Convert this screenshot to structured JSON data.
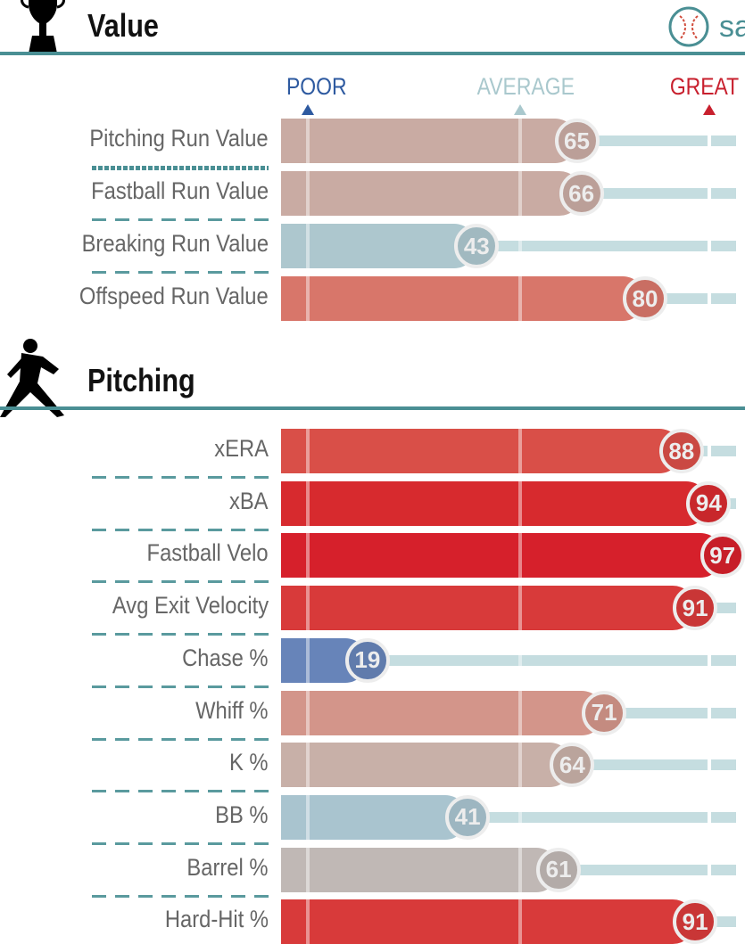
{
  "logo_text": "sa",
  "scale": {
    "poor": "POOR",
    "average": "AVERAGE",
    "great": "GREAT",
    "poor_color": "#2e5aa0",
    "average_color": "#a9c8cd",
    "great_color": "#c8202e"
  },
  "chart_data": [
    {
      "type": "bar",
      "title": "Value",
      "categories": [
        "Pitching Run Value",
        "Fastball Run Value",
        "Breaking Run Value",
        "Offspeed Run Value"
      ],
      "values": [
        65,
        66,
        43,
        80
      ],
      "colors": [
        "#c9aba3",
        "#c9aba3",
        "#adc7ce",
        "#d8766a"
      ],
      "xlim": [
        0,
        100
      ]
    },
    {
      "type": "bar",
      "title": "Pitching",
      "categories": [
        "xERA",
        "xBA",
        "Fastball Velo",
        "Avg Exit Velocity",
        "Chase %",
        "Whiff %",
        "K %",
        "BB %",
        "Barrel %",
        "Hard-Hit %"
      ],
      "values": [
        88,
        94,
        97,
        91,
        19,
        71,
        64,
        41,
        61,
        91
      ],
      "colors": [
        "#d94f48",
        "#d72a2e",
        "#d6202b",
        "#d83a3a",
        "#6784b9",
        "#d3958a",
        "#c8b0a8",
        "#a9c4cf",
        "#c0b8b5",
        "#d83a3a"
      ],
      "xlim": [
        0,
        100
      ]
    }
  ]
}
